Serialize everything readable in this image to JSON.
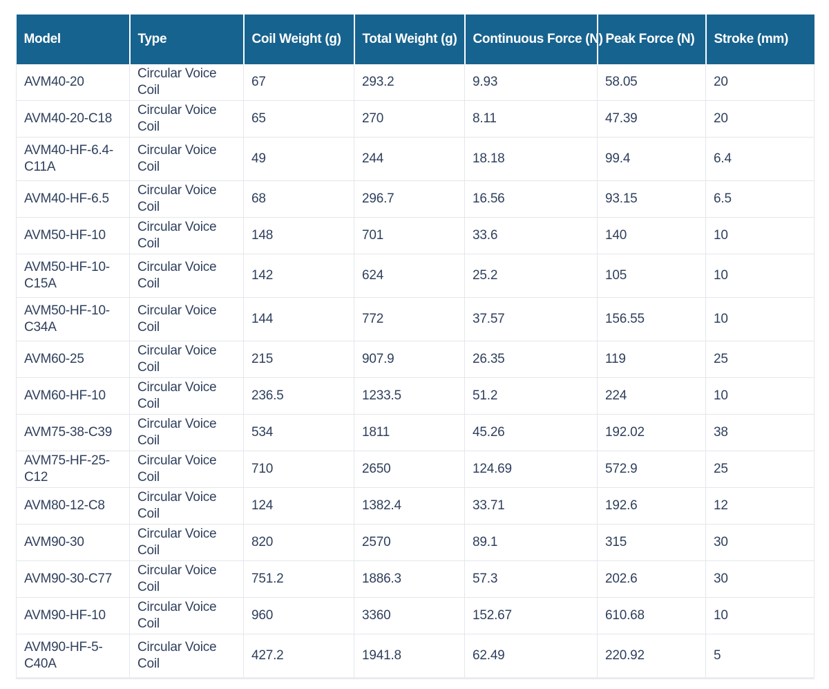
{
  "table": {
    "headers": [
      "Model",
      "Type",
      "Coil Weight (g)",
      "Total Weight (g)",
      "Continuous Force (N)",
      "Peak Force (N)",
      "Stroke (mm)"
    ],
    "rows": [
      [
        "AVM40-20",
        "Circular Voice Coil",
        "67",
        "293.2",
        "9.93",
        "58.05",
        "20"
      ],
      [
        "AVM40-20-C18",
        "Circular Voice Coil",
        "65",
        "270",
        "8.11",
        "47.39",
        "20"
      ],
      [
        "AVM40-HF-6.4-C11A",
        "Circular Voice Coil",
        "49",
        "244",
        "18.18",
        "99.4",
        "6.4"
      ],
      [
        "AVM40-HF-6.5",
        "Circular Voice Coil",
        "68",
        "296.7",
        "16.56",
        "93.15",
        "6.5"
      ],
      [
        "AVM50-HF-10",
        "Circular Voice Coil",
        "148",
        "701",
        "33.6",
        "140",
        "10"
      ],
      [
        "AVM50-HF-10-C15A",
        "Circular Voice Coil",
        "142",
        "624",
        "25.2",
        "105",
        "10"
      ],
      [
        "AVM50-HF-10-C34A",
        "Circular Voice Coil",
        "144",
        "772",
        "37.57",
        "156.55",
        "10"
      ],
      [
        "AVM60-25",
        "Circular Voice Coil",
        "215",
        "907.9",
        "26.35",
        "119",
        "25"
      ],
      [
        "AVM60-HF-10",
        "Circular Voice Coil",
        "236.5",
        "1233.5",
        "51.2",
        "224",
        "10"
      ],
      [
        "AVM75-38-C39",
        "Circular Voice Coil",
        "534",
        "1811",
        "45.26",
        "192.02",
        "38"
      ],
      [
        "AVM75-HF-25-C12",
        "Circular Voice Coil",
        "710",
        "2650",
        "124.69",
        "572.9",
        "25"
      ],
      [
        "AVM80-12-C8",
        "Circular Voice Coil",
        "124",
        "1382.4",
        "33.71",
        "192.6",
        "12"
      ],
      [
        "AVM90-30",
        "Circular Voice Coil",
        "820",
        "2570",
        "89.1",
        "315",
        "30"
      ],
      [
        "AVM90-30-C77",
        "Circular Voice Coil",
        "751.2",
        "1886.3",
        "57.3",
        "202.6",
        "30"
      ],
      [
        "AVM90-HF-10",
        "Circular Voice Coil",
        "960",
        "3360",
        "152.67",
        "610.68",
        "10"
      ],
      [
        "AVM90-HF-5-C40A",
        "Circular Voice Coil",
        "427.2",
        "1941.8",
        "62.49",
        "220.92",
        "5"
      ]
    ]
  },
  "colors": {
    "header_bg": "#17638f",
    "header_text": "#ffffff",
    "cell_text": "#2e3f5c",
    "grid": "#e3e6ea"
  }
}
